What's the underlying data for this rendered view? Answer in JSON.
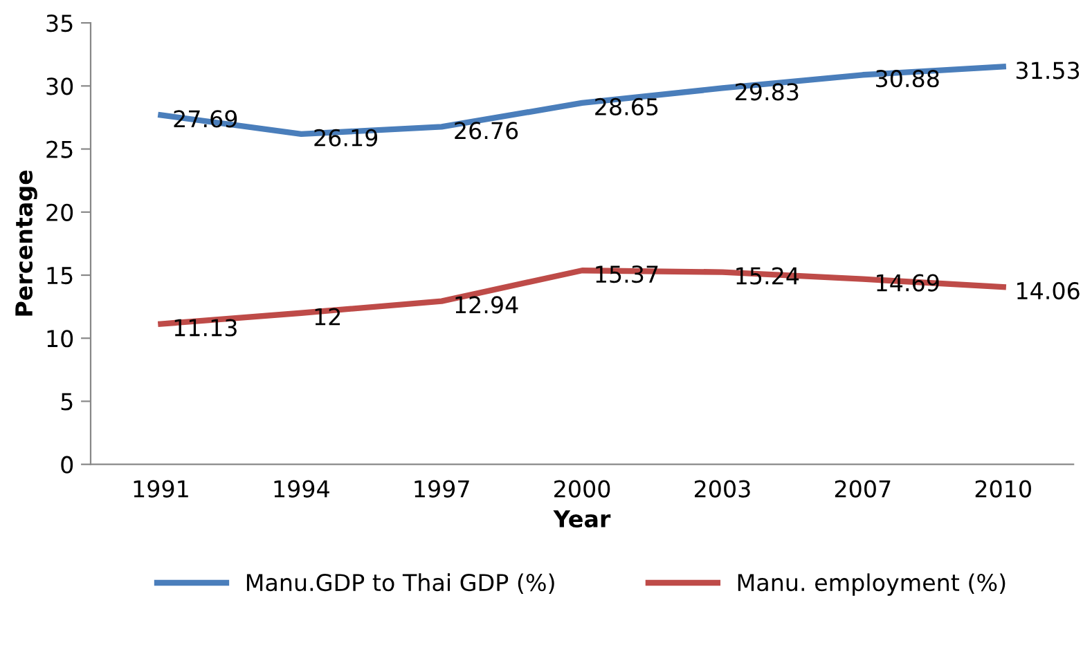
{
  "chart_data": {
    "type": "line",
    "xlabel": "Year",
    "ylabel": "Percentage",
    "categories": [
      "1991",
      "1994",
      "1997",
      "2000",
      "2003",
      "2007",
      "2010"
    ],
    "series": [
      {
        "name": "Manu.GDP to Thai GDP (%)",
        "color": "#4a7ebb",
        "values": [
          27.69,
          26.19,
          26.76,
          28.65,
          29.83,
          30.88,
          31.53
        ]
      },
      {
        "name": "Manu. employment (%)",
        "color": "#be4b48",
        "values": [
          11.13,
          12,
          12.94,
          15.37,
          15.24,
          14.69,
          14.06
        ]
      }
    ],
    "ylim": [
      0,
      35
    ],
    "yticks": [
      0,
      5,
      10,
      15,
      20,
      25,
      30,
      35
    ],
    "data_labels": true,
    "grid": false,
    "legend": "bottom",
    "marker": "none",
    "line_style": "solid"
  }
}
